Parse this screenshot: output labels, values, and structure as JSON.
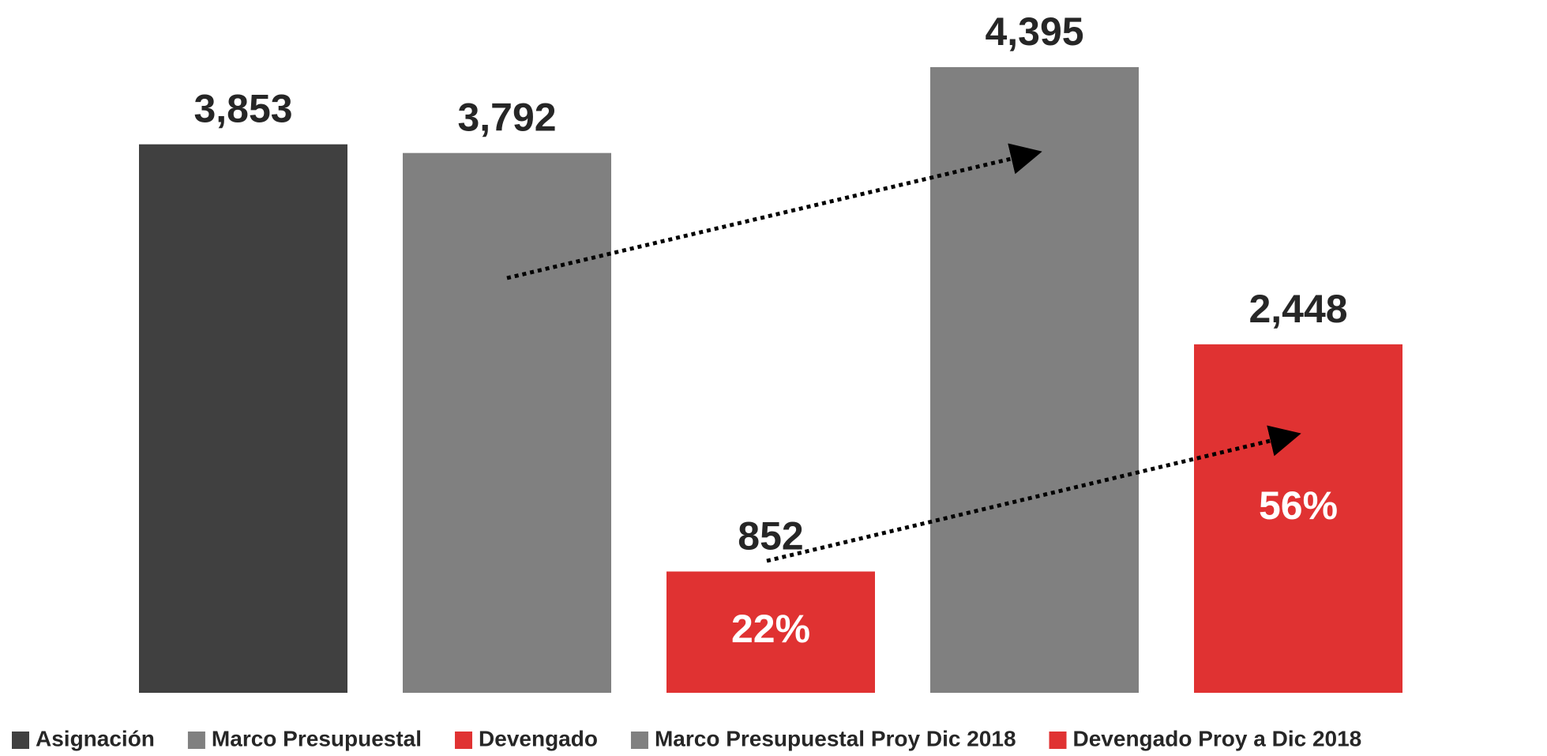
{
  "chart_data": {
    "type": "bar",
    "series": [
      {
        "name": "Asignación",
        "color": "#404040",
        "values": [
          3853
        ],
        "value_labels": [
          "3,853"
        ]
      },
      {
        "name": "Marco Presupuestal",
        "color": "#808080",
        "values": [
          3792
        ],
        "value_labels": [
          "3,792"
        ]
      },
      {
        "name": "Devengado",
        "color": "#e03232",
        "values": [
          852
        ],
        "value_labels": [
          "852"
        ]
      },
      {
        "name": "Marco Presupuestal Proy Dic 2018",
        "color": "#808080",
        "values": [
          4395
        ],
        "value_labels": [
          "4,395"
        ]
      },
      {
        "name": "Devengado Proy a Dic 2018",
        "color": "#e03232",
        "values": [
          2448
        ],
        "value_labels": [
          "2,448"
        ]
      }
    ],
    "annotations": [
      "22%",
      "56%"
    ],
    "legend": "bottom"
  }
}
